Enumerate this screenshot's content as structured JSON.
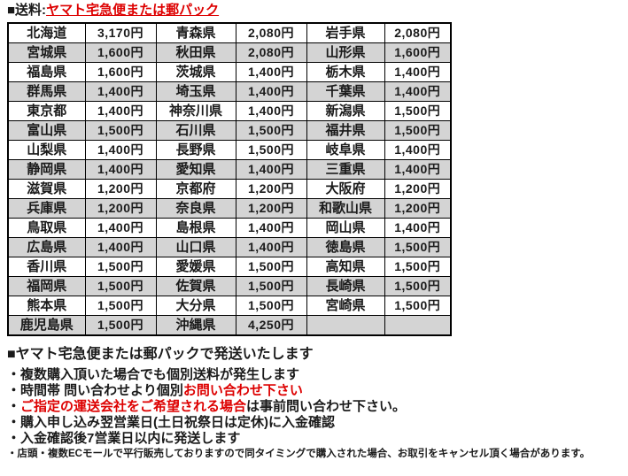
{
  "title": {
    "prefix": "■送料:",
    "highlight": "ヤマト宅急便または郵パック"
  },
  "colors": {
    "red": "#dd0000",
    "row_gray": "#d4d4d4",
    "border": "#000000"
  },
  "table": {
    "rows": [
      [
        {
          "name": "北海道",
          "price": "3,170円"
        },
        {
          "name": "青森県",
          "price": "2,080円"
        },
        {
          "name": "岩手県",
          "price": "2,080円"
        }
      ],
      [
        {
          "name": "宮城県",
          "price": "1,600円"
        },
        {
          "name": "秋田県",
          "price": "2,080円"
        },
        {
          "name": "山形県",
          "price": "1,600円"
        }
      ],
      [
        {
          "name": "福島県",
          "price": "1,600円"
        },
        {
          "name": "茨城県",
          "price": "1,400円"
        },
        {
          "name": "栃木県",
          "price": "1,400円"
        }
      ],
      [
        {
          "name": "群馬県",
          "price": "1,400円"
        },
        {
          "name": "埼玉県",
          "price": "1,400円"
        },
        {
          "name": "千葉県",
          "price": "1,400円"
        }
      ],
      [
        {
          "name": "東京都",
          "price": "1,400円"
        },
        {
          "name": "神奈川県",
          "price": "1,400円"
        },
        {
          "name": "新潟県",
          "price": "1,500円"
        }
      ],
      [
        {
          "name": "富山県",
          "price": "1,500円"
        },
        {
          "name": "石川県",
          "price": "1,500円"
        },
        {
          "name": "福井県",
          "price": "1,500円"
        }
      ],
      [
        {
          "name": "山梨県",
          "price": "1,400円"
        },
        {
          "name": "長野県",
          "price": "1,500円"
        },
        {
          "name": "岐阜県",
          "price": "1,400円"
        }
      ],
      [
        {
          "name": "静岡県",
          "price": "1,400円"
        },
        {
          "name": "愛知県",
          "price": "1,400円"
        },
        {
          "name": "三重県",
          "price": "1,400円"
        }
      ],
      [
        {
          "name": "滋賀県",
          "price": "1,200円"
        },
        {
          "name": "京都府",
          "price": "1,200円"
        },
        {
          "name": "大阪府",
          "price": "1,200円"
        }
      ],
      [
        {
          "name": "兵庫県",
          "price": "1,200円"
        },
        {
          "name": "奈良県",
          "price": "1,200円"
        },
        {
          "name": "和歌山県",
          "price": "1,200円"
        }
      ],
      [
        {
          "name": "鳥取県",
          "price": "1,400円"
        },
        {
          "name": "島根県",
          "price": "1,400円"
        },
        {
          "name": "岡山県",
          "price": "1,400円"
        }
      ],
      [
        {
          "name": "広島県",
          "price": "1,400円"
        },
        {
          "name": "山口県",
          "price": "1,400円"
        },
        {
          "name": "徳島県",
          "price": "1,500円"
        }
      ],
      [
        {
          "name": "香川県",
          "price": "1,500円"
        },
        {
          "name": "愛媛県",
          "price": "1,500円"
        },
        {
          "name": "高知県",
          "price": "1,500円"
        }
      ],
      [
        {
          "name": "福岡県",
          "price": "1,500円"
        },
        {
          "name": "佐賀県",
          "price": "1,500円"
        },
        {
          "name": "長崎県",
          "price": "1,500円"
        }
      ],
      [
        {
          "name": "熊本県",
          "price": "1,500円"
        },
        {
          "name": "大分県",
          "price": "1,500円"
        },
        {
          "name": "宮崎県",
          "price": "1,500円"
        }
      ],
      [
        {
          "name": "鹿児島県",
          "price": "1,500円"
        },
        {
          "name": "沖縄県",
          "price": "4,250円"
        },
        {
          "name": "",
          "price": ""
        }
      ]
    ]
  },
  "notes": {
    "heading": "■ヤマト宅急便または郵パックで発送いたします",
    "lines": [
      {
        "small": false,
        "segments": [
          {
            "text": "・複数購入頂いた場合でも個別送料が発生します",
            "red": false
          }
        ]
      },
      {
        "small": false,
        "segments": [
          {
            "text": "・時間帯 問い合わせより個別",
            "red": false
          },
          {
            "text": "お問い合わせ下さい",
            "red": true
          }
        ]
      },
      {
        "small": false,
        "segments": [
          {
            "text": "・",
            "red": false
          },
          {
            "text": "ご指定の運送会社をご希望される場合",
            "red": true
          },
          {
            "text": "は事前問い合わせ下さい。",
            "red": false
          }
        ]
      },
      {
        "small": false,
        "segments": [
          {
            "text": "・購入申し込み翌営業日(土日祝祭日は定休)に入金確認",
            "red": false
          }
        ]
      },
      {
        "small": false,
        "segments": [
          {
            "text": "・入金確認後7営業日以内に発送します",
            "red": false
          }
        ]
      },
      {
        "small": true,
        "segments": [
          {
            "text": "・店頭・複数ECモールで平行販売しておりますので同タイミングで購入された場合、お取引をキャンセル頂く場合があります。",
            "red": false
          }
        ]
      }
    ]
  }
}
